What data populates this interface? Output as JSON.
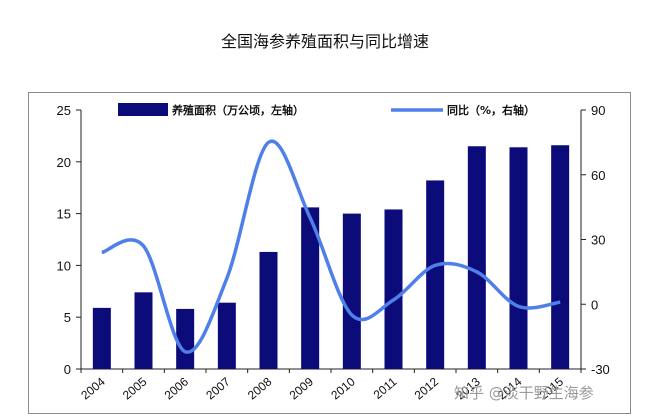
{
  "page_title": "全国海参养殖面积与同比增速",
  "watermark": "知乎 @淡干野生海参",
  "chart_data": {
    "type": "bar",
    "categories": [
      "2004",
      "2005",
      "2006",
      "2007",
      "2008",
      "2009",
      "2010",
      "2011",
      "2012",
      "2013",
      "2014",
      "2015"
    ],
    "xtick_labels": [
      "2004",
      "2005",
      "2006",
      "2007",
      "2008",
      "2009",
      "2010",
      "2011",
      "2012",
      "2013",
      "2014",
      "2015"
    ],
    "series": [
      {
        "name": "养殖面积（万公顷，左轴）",
        "kind": "bar",
        "axis": "left",
        "color": "#0b0b7a",
        "values": [
          5.9,
          7.4,
          5.8,
          6.4,
          11.3,
          15.6,
          15.0,
          15.4,
          18.2,
          21.5,
          21.4,
          21.6
        ]
      },
      {
        "name": "同比（%，右轴）",
        "kind": "line",
        "axis": "right",
        "color": "#4f7fe8",
        "values": [
          24,
          27,
          -22,
          12,
          75,
          40,
          -5,
          2,
          18,
          15,
          -1,
          1
        ]
      }
    ],
    "y_left": {
      "min": 0,
      "max": 25,
      "ticks": [
        0,
        5,
        10,
        15,
        20,
        25
      ]
    },
    "y_right": {
      "min": -30,
      "max": 90,
      "ticks": [
        -30,
        0,
        30,
        60,
        90
      ]
    },
    "title": "",
    "xlabel": "",
    "ylabel": "",
    "legend_position": "top",
    "grid": false
  }
}
